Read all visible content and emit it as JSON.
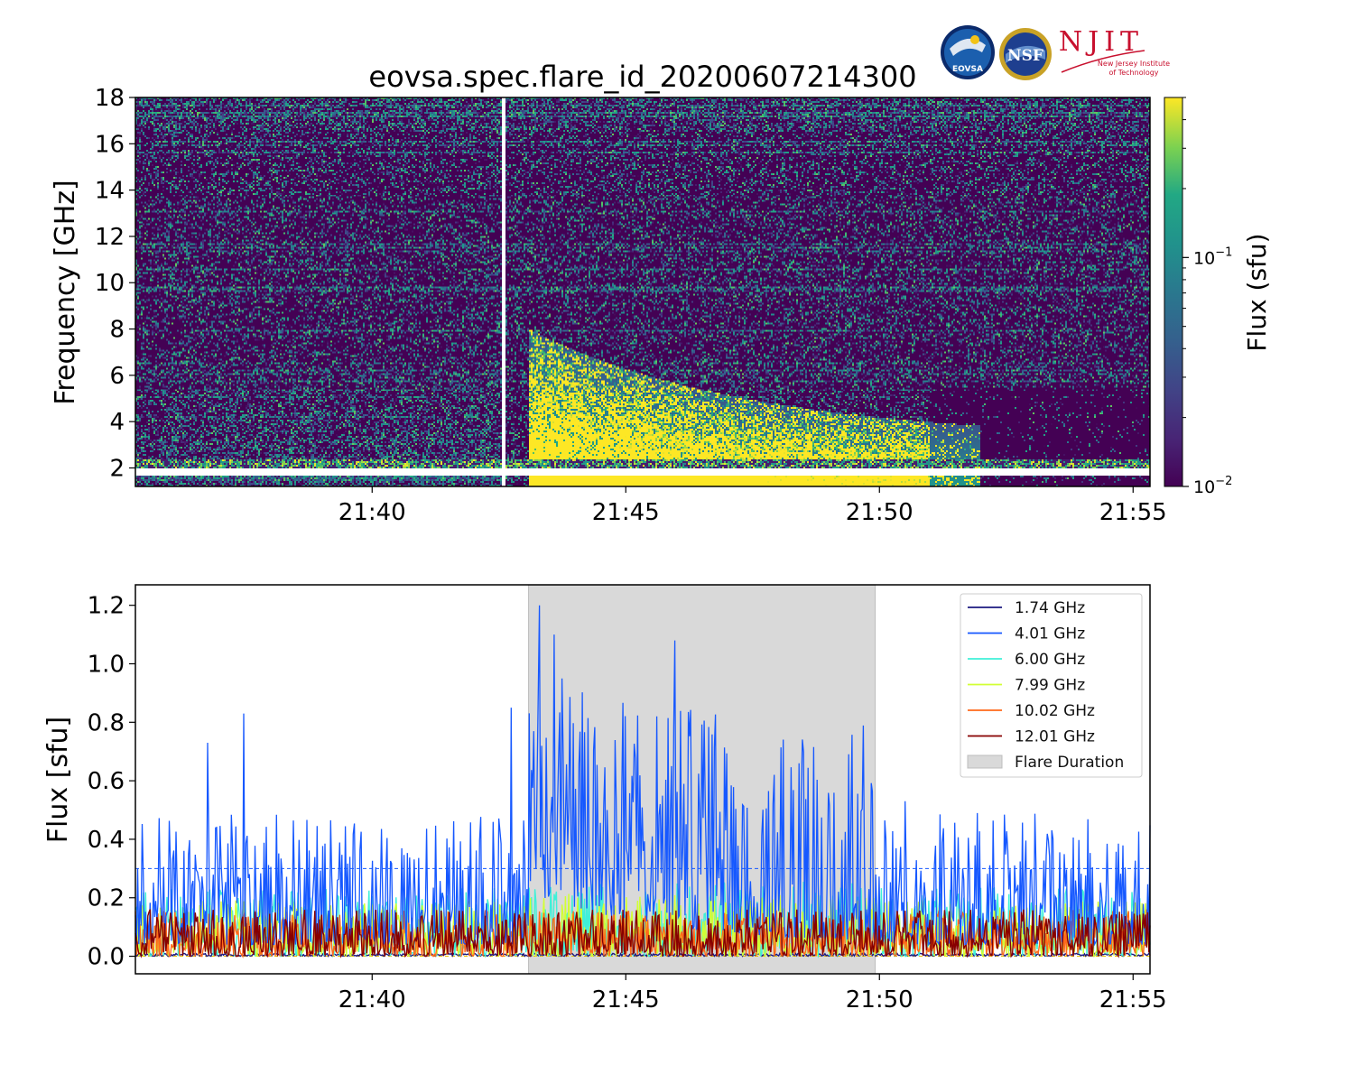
{
  "title": "eovsa.spec.flare_id_20200607214300",
  "logos": {
    "eovsa": {
      "text": "EOVSA",
      "colors": [
        "#0b2a6b",
        "#1b5fae",
        "#f2c318"
      ]
    },
    "nsf": {
      "text": "NSF",
      "colors": [
        "#1e3f8f",
        "#c9a227"
      ]
    },
    "njit": {
      "text": "NJIT",
      "subtitle_1": "New Jersey Institute",
      "subtitle_2": "of Technology",
      "color": "#c8102e"
    }
  },
  "chart_data": [
    {
      "type": "heatmap",
      "ylabel": "Frequency [GHz]",
      "xlim": [
        "21:35:20",
        "21:55:20"
      ],
      "ylim": [
        1.2,
        18
      ],
      "x_ticks": [
        "21:40",
        "21:45",
        "21:50",
        "21:55"
      ],
      "y_ticks": [
        2,
        4,
        6,
        8,
        10,
        12,
        14,
        16,
        18
      ],
      "colormap": "viridis",
      "colorbar": {
        "label": "Flux  (sfu)",
        "scale": "log",
        "range": [
          0.01,
          0.5
        ],
        "tick_base": "10",
        "tick_exponents": [
          "−1",
          "−2"
        ],
        "tick_values": [
          0.1,
          0.01
        ]
      },
      "features": {
        "burst_start": "21:43:05",
        "burst_peak_band_GHz": [
          2.3,
          6.5
        ],
        "data_gap_time": "21:42:35",
        "data_gap_band_GHz": [
          1.7,
          2.0
        ],
        "rfi_band_GHz": [
          2.0,
          2.4
        ],
        "quiet_after": "21:51:00"
      }
    },
    {
      "type": "line",
      "ylabel": "Flux [sfu]",
      "xlim": [
        "21:35:20",
        "21:55:20"
      ],
      "ylim": [
        -0.06,
        1.27
      ],
      "x_ticks": [
        "21:40",
        "21:45",
        "21:50",
        "21:55"
      ],
      "y_ticks": [
        "0.0",
        "0.2",
        "0.4",
        "0.6",
        "0.8",
        "1.0",
        "1.2"
      ],
      "y_tick_values": [
        0.0,
        0.2,
        0.4,
        0.6,
        0.8,
        1.0,
        1.2
      ],
      "threshold_lines": [
        0.0,
        0.3
      ],
      "legend_position": "upper right",
      "series": [
        {
          "name": "1.74 GHz",
          "color": "#1c1a80",
          "baseline": 0.01,
          "noise": 0.01
        },
        {
          "name": "4.01 GHz",
          "color": "#1658ff",
          "baseline": 0.1,
          "noise": 0.12,
          "peaks": [
            {
              "t": "21:37:28",
              "v": 0.83
            },
            {
              "t": "21:36:45",
              "v": 0.73
            },
            {
              "t": "21:42:45",
              "v": 0.85
            },
            {
              "t": "21:43:18",
              "v": 1.2
            },
            {
              "t": "21:43:35",
              "v": 1.1
            },
            {
              "t": "21:43:45",
              "v": 0.95
            },
            {
              "t": "21:45:58",
              "v": 1.08
            },
            {
              "t": "21:48:25",
              "v": 0.66
            },
            {
              "t": "21:50:30",
              "v": 0.53
            }
          ]
        },
        {
          "name": "6.00 GHz",
          "color": "#3ff0d8",
          "baseline": 0.08,
          "noise": 0.06
        },
        {
          "name": "7.99 GHz",
          "color": "#d2ff33",
          "baseline": 0.06,
          "noise": 0.06
        },
        {
          "name": "10.02 GHz",
          "color": "#ff6a1a",
          "baseline": 0.05,
          "noise": 0.05
        },
        {
          "name": "12.01 GHz",
          "color": "#870000",
          "baseline": 0.05,
          "noise": 0.05
        }
      ],
      "flare_duration": {
        "label": "Flare Duration",
        "start": "21:43:05",
        "end": "21:49:55",
        "color": "#d9d9d9"
      }
    }
  ]
}
